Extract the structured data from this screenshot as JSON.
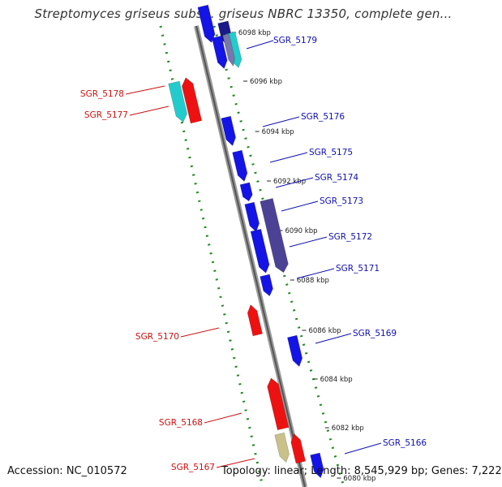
{
  "title": "Streptomyces griseus subsp. griseus NBRC 13350, complete gen...",
  "accession": "Accession: NC_010572",
  "summary": "Topology: linear; Length: 8,545,929 bp; Genes: 7,222",
  "colors": {
    "forward_gene": "#1414e6",
    "reverse_gene": "#ee1111",
    "highlight_cyan": "#22cccc",
    "highlight_purple": "#4b4296",
    "highlight_khaki": "#c9c08a",
    "axis": "#888888",
    "grid_dots": "#228822",
    "label_forward": "#1010b0",
    "label_reverse": "#cc1111"
  },
  "ticks": [
    "6098 kbp",
    "6096 kbp",
    "6094 kbp",
    "6092 kbp",
    "6090 kbp",
    "6088 kbp",
    "6086 kbp",
    "6084 kbp",
    "6082 kbp",
    "6080 kbp"
  ],
  "genes_forward": [
    "SGR_5179",
    "SGR_5176",
    "SGR_5175",
    "SGR_5174",
    "SGR_5173",
    "SGR_5172",
    "SGR_5171",
    "SGR_5169",
    "SGR_5166"
  ],
  "genes_reverse": [
    "SGR_5178",
    "SGR_5177",
    "SGR_5170",
    "SGR_5168",
    "SGR_5167"
  ]
}
